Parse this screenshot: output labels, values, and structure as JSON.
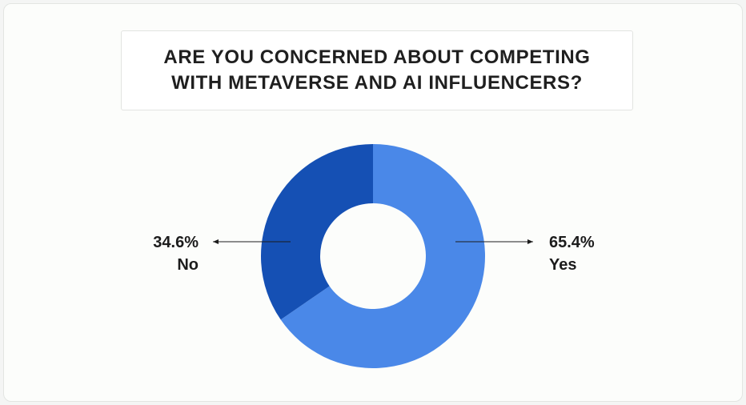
{
  "chart_data": {
    "type": "pie",
    "title": "ARE YOU CONCERNED ABOUT COMPETING WITH METAVERSE AND AI INFLUENCERS?",
    "categories": [
      "Yes",
      "No"
    ],
    "values": [
      65.4,
      34.6
    ],
    "value_labels": [
      "65.4%",
      "34.6%"
    ],
    "colors": [
      "#4a88e8",
      "#1550b4"
    ],
    "donut": true,
    "legend": "none"
  }
}
